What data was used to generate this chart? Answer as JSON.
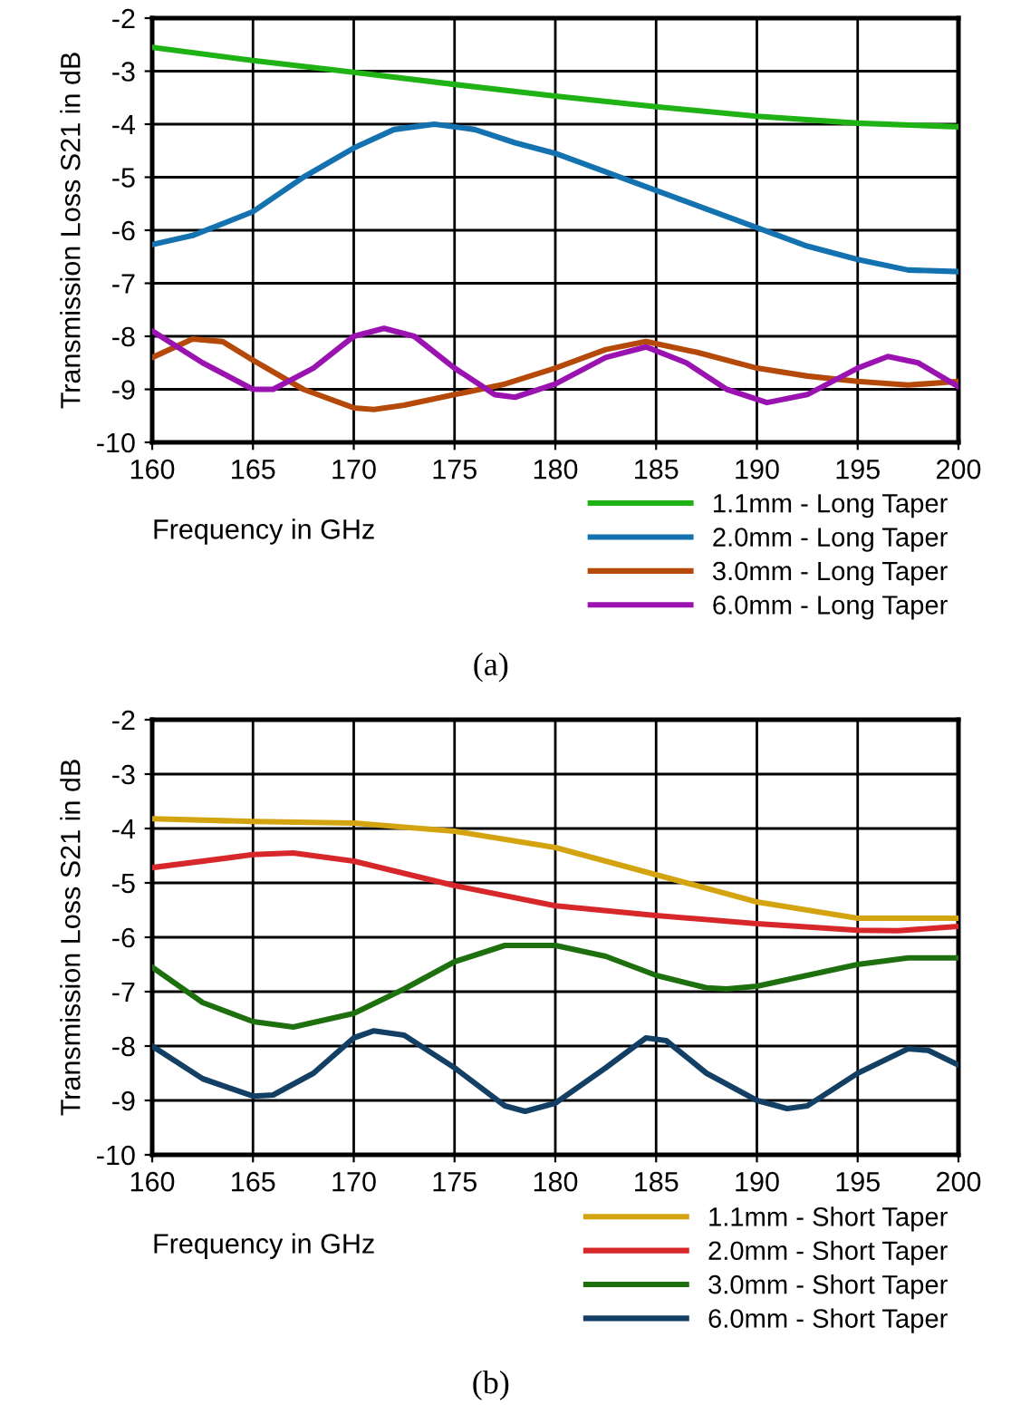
{
  "chart_data": [
    {
      "type": "line",
      "xlabel": "Frequency in GHz",
      "ylabel": "Transmission Loss S21 in dB",
      "xlim": [
        160,
        200
      ],
      "xticks": [
        160,
        165,
        170,
        175,
        180,
        185,
        190,
        195,
        200
      ],
      "ylim": [
        -10,
        -2
      ],
      "yticks": [
        -10,
        -9,
        -8,
        -7,
        -6,
        -5,
        -4,
        -3,
        -2
      ],
      "grid": true,
      "legend": "bottom right",
      "annotations": [
        "(a)"
      ],
      "series": [
        {
          "name": "1.1mm - Long Taper",
          "color": "#1fb214",
          "x": [
            160,
            165,
            170,
            175,
            180,
            185,
            190,
            195,
            200
          ],
          "values": [
            -2.55,
            -2.8,
            -3.02,
            -3.25,
            -3.47,
            -3.67,
            -3.85,
            -3.98,
            -4.05
          ]
        },
        {
          "name": "2.0mm - Long Taper",
          "color": "#1572b0",
          "x": [
            160,
            162,
            165,
            167.5,
            170,
            172,
            174,
            176,
            178,
            180,
            182.5,
            185,
            187.5,
            190,
            192.5,
            195,
            197.5,
            200
          ],
          "values": [
            -6.27,
            -6.1,
            -5.65,
            -5.0,
            -4.45,
            -4.1,
            -4.0,
            -4.1,
            -4.35,
            -4.55,
            -4.9,
            -5.25,
            -5.6,
            -5.95,
            -6.3,
            -6.55,
            -6.75,
            -6.78
          ]
        },
        {
          "name": "3.0mm - Long Taper",
          "color": "#b5490a",
          "x": [
            160,
            162,
            163.5,
            165,
            167.5,
            170,
            171,
            172.5,
            175,
            177.5,
            180,
            182.5,
            184.5,
            187,
            190,
            192.5,
            195,
            197.5,
            200
          ],
          "values": [
            -8.4,
            -8.05,
            -8.1,
            -8.45,
            -9.0,
            -9.35,
            -9.38,
            -9.3,
            -9.1,
            -8.9,
            -8.6,
            -8.25,
            -8.1,
            -8.3,
            -8.6,
            -8.75,
            -8.85,
            -8.92,
            -8.85
          ]
        },
        {
          "name": "6.0mm - Long Taper",
          "color": "#9a12b0",
          "x": [
            160,
            162.5,
            165,
            166,
            168,
            170,
            171.5,
            173,
            175,
            177,
            178,
            180,
            182.5,
            184.5,
            186.5,
            188.5,
            190.5,
            192.5,
            195,
            196.5,
            198,
            200
          ],
          "values": [
            -7.9,
            -8.5,
            -9.0,
            -9.0,
            -8.6,
            -8.0,
            -7.85,
            -8.0,
            -8.6,
            -9.1,
            -9.15,
            -8.9,
            -8.4,
            -8.2,
            -8.5,
            -9.0,
            -9.25,
            -9.1,
            -8.6,
            -8.38,
            -8.5,
            -8.95
          ]
        }
      ]
    },
    {
      "type": "line",
      "xlabel": "Frequency in GHz",
      "ylabel": "Transmission Loss S21 in dB",
      "xlim": [
        160,
        200
      ],
      "xticks": [
        160,
        165,
        170,
        175,
        180,
        185,
        190,
        195,
        200
      ],
      "ylim": [
        -10,
        -2
      ],
      "yticks": [
        -10,
        -9,
        -8,
        -7,
        -6,
        -5,
        -4,
        -3,
        -2
      ],
      "grid": true,
      "legend": "bottom right",
      "annotations": [
        "(b)"
      ],
      "series": [
        {
          "name": "1.1mm - Short Taper",
          "color": "#d4a410",
          "x": [
            160,
            165,
            170,
            175,
            180,
            185,
            190,
            195,
            200
          ],
          "values": [
            -3.82,
            -3.87,
            -3.9,
            -4.05,
            -4.35,
            -4.85,
            -5.35,
            -5.65,
            -5.65
          ]
        },
        {
          "name": "2.0mm - Short Taper",
          "color": "#d8272a",
          "x": [
            160,
            165,
            167,
            170,
            175,
            180,
            185,
            190,
            195,
            197,
            200
          ],
          "values": [
            -4.72,
            -4.48,
            -4.45,
            -4.6,
            -5.05,
            -5.42,
            -5.6,
            -5.75,
            -5.87,
            -5.88,
            -5.8
          ]
        },
        {
          "name": "3.0mm - Short Taper",
          "color": "#1e700f",
          "x": [
            160,
            162.5,
            165,
            167,
            170,
            172.5,
            175,
            177.5,
            180,
            182.5,
            185,
            187.5,
            188.5,
            190,
            192.5,
            195,
            197.5,
            200
          ],
          "values": [
            -6.55,
            -7.2,
            -7.55,
            -7.65,
            -7.4,
            -6.95,
            -6.45,
            -6.15,
            -6.15,
            -6.35,
            -6.7,
            -6.93,
            -6.95,
            -6.9,
            -6.7,
            -6.5,
            -6.38,
            -6.38
          ]
        },
        {
          "name": "6.0mm - Short Taper",
          "color": "#123f63",
          "x": [
            160,
            162.5,
            165,
            166,
            168,
            170,
            171,
            172.5,
            175,
            177.5,
            178.5,
            180,
            182.5,
            184.5,
            185.5,
            187.5,
            190,
            191.5,
            192.5,
            195,
            197.5,
            198.5,
            200
          ],
          "values": [
            -8.0,
            -8.6,
            -8.92,
            -8.9,
            -8.5,
            -7.85,
            -7.72,
            -7.8,
            -8.4,
            -9.1,
            -9.2,
            -9.05,
            -8.4,
            -7.85,
            -7.9,
            -8.5,
            -9.0,
            -9.15,
            -9.1,
            -8.5,
            -8.05,
            -8.08,
            -8.35
          ]
        }
      ]
    }
  ]
}
